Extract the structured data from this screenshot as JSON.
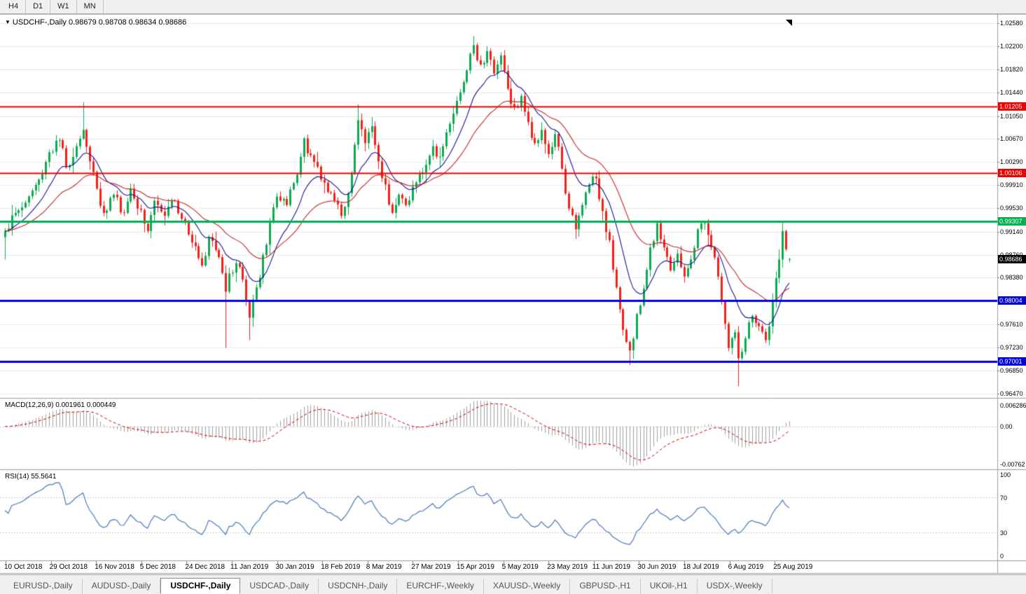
{
  "toolbar": {
    "timeframes": [
      {
        "label": "H4"
      },
      {
        "label": "D1"
      },
      {
        "label": "W1"
      },
      {
        "label": "MN"
      }
    ]
  },
  "chart": {
    "title": "USDCHF-,Daily  0.98679 0.98708 0.98634 0.98686",
    "symbol": "USDCHF-,Daily",
    "ohlc": {
      "open": "0.98679",
      "high": "0.98708",
      "low": "0.98634",
      "close": "0.98686"
    },
    "last_price_chip": {
      "label": "0.98686",
      "bg": "#000000",
      "fg": "#ffffff"
    },
    "dropdown_marker": "▼"
  },
  "macd": {
    "label": "MACD(12,26,9) 0.001961 0.000449",
    "periods": [
      12,
      26,
      9
    ],
    "values": {
      "main": "0.001961",
      "signal": "0.000449"
    },
    "axis_max": "0.006286",
    "axis_zero": "0.00",
    "axis_min": "-0.00762",
    "histogram_color": "#a0a0a0",
    "signal_color": "#d00000"
  },
  "rsi": {
    "label": "RSI(14) 55.5641",
    "period": 14,
    "value": "55.5641",
    "axis": [
      "100",
      "70",
      "30",
      "0"
    ],
    "level_lines": [
      70,
      30
    ],
    "line_color": "#4679bd"
  },
  "chart_data": {
    "type": "candlestick",
    "symbol": "USDCHF",
    "timeframe": "Daily",
    "candle_count": 232,
    "colors": {
      "up": "#0caa51",
      "down": "#f22117",
      "grid": "#ececec"
    },
    "ma": {
      "fast": {
        "period": 12,
        "color": "#14149b"
      },
      "slow": {
        "period": 30,
        "color": "#c62424"
      }
    },
    "price_axis": {
      "p_top": 1.0264,
      "p_bottom": 0.9642,
      "ticks": [
        1.0258,
        1.022,
        1.0182,
        1.0144,
        1.0105,
        1.0067,
        1.0029,
        0.9991,
        0.9953,
        0.9914,
        0.9876,
        0.9838,
        0.9761,
        0.9723,
        0.9685,
        0.9647
      ]
    },
    "levels": [
      {
        "value": 1.01205,
        "label": "1.01205",
        "color": "#ee0000",
        "thickness": 2
      },
      {
        "value": 1.00106,
        "label": "1.00106",
        "color": "#ee0000",
        "thickness": 2
      },
      {
        "value": 0.99307,
        "label": "0.99307",
        "color": "#00b050",
        "thickness": 3
      },
      {
        "value": 0.98004,
        "label": "0.98004",
        "color": "#0000dd",
        "thickness": 3
      },
      {
        "value": 0.97001,
        "label": "0.97001",
        "color": "#0000dd",
        "thickness": 3
      }
    ],
    "dates": [
      "10 Oct 2018",
      "29 Oct 2018",
      "16 Nov 2018",
      "5 Dec 2018",
      "24 Dec 2018",
      "11 Jan 2019",
      "30 Jan 2019",
      "18 Feb 2019",
      "8 Mar 2019",
      "27 Mar 2019",
      "15 Apr 2019",
      "5 May 2019",
      "23 May 2019",
      "11 Jun 2019",
      "30 Jun 2019",
      "18 Jul 2019",
      "6 Aug 2019",
      "25 Aug 2019"
    ],
    "close_anchors": [
      [
        0,
        0.9915
      ],
      [
        3,
        0.9945
      ],
      [
        6,
        0.9962
      ],
      [
        10,
        1.0
      ],
      [
        13,
        1.0045
      ],
      [
        16,
        1.0065
      ],
      [
        18,
        1.002
      ],
      [
        21,
        1.0055
      ],
      [
        23,
        1.0082
      ],
      [
        25,
        1.003
      ],
      [
        27,
        0.9985
      ],
      [
        29,
        0.9945
      ],
      [
        32,
        0.9975
      ],
      [
        35,
        0.9945
      ],
      [
        37,
        0.9985
      ],
      [
        40,
        0.995
      ],
      [
        42,
        0.9915
      ],
      [
        44,
        0.9965
      ],
      [
        47,
        0.994
      ],
      [
        50,
        0.9965
      ],
      [
        53,
        0.993
      ],
      [
        56,
        0.989
      ],
      [
        58,
        0.9858
      ],
      [
        60,
        0.9905
      ],
      [
        63,
        0.9872
      ],
      [
        65,
        0.9815
      ],
      [
        66,
        0.9845
      ],
      [
        68,
        0.9862
      ],
      [
        70,
        0.9835
      ],
      [
        72,
        0.9772
      ],
      [
        73,
        0.9802
      ],
      [
        75,
        0.9838
      ],
      [
        78,
        0.993
      ],
      [
        80,
        0.9972
      ],
      [
        83,
        0.9958
      ],
      [
        86,
        1.0008
      ],
      [
        88,
        1.0068
      ],
      [
        90,
        1.004
      ],
      [
        93,
        1.0
      ],
      [
        96,
        0.9978
      ],
      [
        99,
        0.994
      ],
      [
        102,
        1.001
      ],
      [
        104,
        1.0098
      ],
      [
        106,
        1.006
      ],
      [
        108,
        1.0088
      ],
      [
        110,
        1.003
      ],
      [
        112,
        0.9992
      ],
      [
        114,
        0.9945
      ],
      [
        116,
        0.9975
      ],
      [
        118,
        0.9958
      ],
      [
        120,
        0.9988
      ],
      [
        123,
        1.0012
      ],
      [
        126,
        1.0055
      ],
      [
        128,
        1.0038
      ],
      [
        131,
        1.0092
      ],
      [
        133,
        1.013
      ],
      [
        136,
        1.018
      ],
      [
        138,
        1.0222
      ],
      [
        140,
        1.019
      ],
      [
        142,
        1.0212
      ],
      [
        144,
        1.0175
      ],
      [
        146,
        1.0205
      ],
      [
        148,
        1.015
      ],
      [
        150,
        1.012
      ],
      [
        152,
        1.0138
      ],
      [
        154,
        1.0095
      ],
      [
        156,
        1.006
      ],
      [
        158,
        1.0082
      ],
      [
        160,
        1.0042
      ],
      [
        162,
        1.0075
      ],
      [
        164,
        1.0018
      ],
      [
        166,
        0.9952
      ],
      [
        168,
        0.9918
      ],
      [
        170,
        0.9958
      ],
      [
        172,
        0.9992
      ],
      [
        174,
        1.0002
      ],
      [
        176,
        0.9948
      ],
      [
        178,
        0.99
      ],
      [
        180,
        0.9822
      ],
      [
        182,
        0.9752
      ],
      [
        184,
        0.9718
      ],
      [
        186,
        0.9778
      ],
      [
        188,
        0.982
      ],
      [
        190,
        0.9888
      ],
      [
        192,
        0.9928
      ],
      [
        194,
        0.9888
      ],
      [
        196,
        0.985
      ],
      [
        198,
        0.9878
      ],
      [
        200,
        0.984
      ],
      [
        202,
        0.9868
      ],
      [
        204,
        0.9918
      ],
      [
        206,
        0.9928
      ],
      [
        208,
        0.9888
      ],
      [
        210,
        0.984
      ],
      [
        212,
        0.9762
      ],
      [
        213,
        0.9722
      ],
      [
        215,
        0.9748
      ],
      [
        216,
        0.9705
      ],
      [
        218,
        0.9738
      ],
      [
        220,
        0.9775
      ],
      [
        222,
        0.9758
      ],
      [
        224,
        0.9735
      ],
      [
        226,
        0.98
      ],
      [
        228,
        0.9868
      ],
      [
        229,
        0.9915
      ],
      [
        230,
        0.9885
      ],
      [
        231,
        0.98686
      ]
    ],
    "wick_overrides": {
      "0": {
        "l": 0.9868
      },
      "23": {
        "h": 1.0128
      },
      "65": {
        "l": 0.9722
      },
      "72": {
        "l": 0.9735
      },
      "104": {
        "h": 1.0124
      },
      "138": {
        "h": 1.0237
      },
      "142": {
        "h": 1.022
      },
      "184": {
        "l": 0.9694
      },
      "216": {
        "l": 0.9659
      },
      "229": {
        "h": 0.9931
      },
      "231": {
        "o": 0.98679,
        "h": 0.98708,
        "l": 0.98634,
        "c": 0.98686
      }
    }
  },
  "tabs": {
    "active_index": 2,
    "items": [
      {
        "label": "EURUSD-,Daily"
      },
      {
        "label": "AUDUSD-,Daily"
      },
      {
        "label": "USDCHF-,Daily"
      },
      {
        "label": "USDCAD-,Daily"
      },
      {
        "label": "USDCNH-,Daily"
      },
      {
        "label": "EURCHF-,Weekly"
      },
      {
        "label": "XAUUSD-,Weekly"
      },
      {
        "label": "GBPUSD-,H1"
      },
      {
        "label": "UKOil-,H1"
      },
      {
        "label": "USDX-,Weekly"
      }
    ]
  }
}
